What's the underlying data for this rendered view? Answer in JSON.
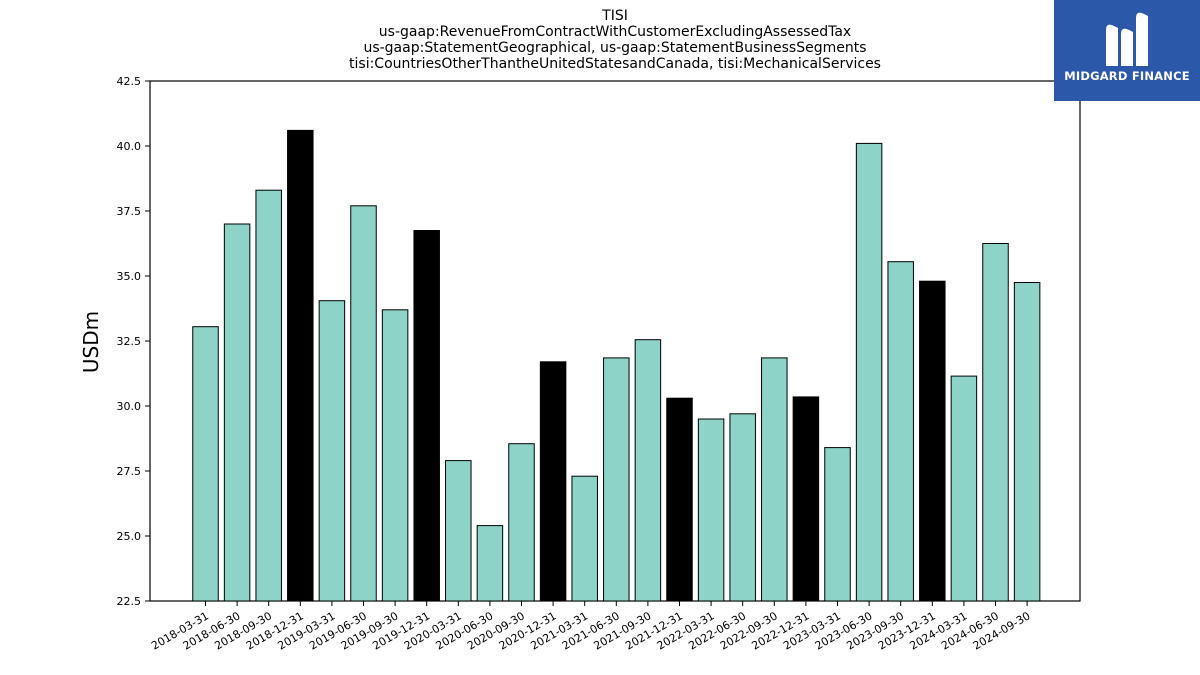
{
  "chart_data": {
    "type": "bar",
    "title_lines": [
      "TISI",
      "us-gaap:RevenueFromContractWithCustomerExcludingAssessedTax",
      "us-gaap:StatementGeographical, us-gaap:StatementBusinessSegments",
      "tisi:CountriesOtherThantheUnitedStatesandCanada, tisi:MechanicalServices"
    ],
    "ylabel": "USDm",
    "xlabel": "",
    "ylim": [
      22.5,
      42.5
    ],
    "yticks": [
      "22.5",
      "25.0",
      "27.5",
      "30.0",
      "32.5",
      "35.0",
      "37.5",
      "40.0",
      "42.5"
    ],
    "categories": [
      "2018-03-31",
      "2018-06-30",
      "2018-09-30",
      "2018-12-31",
      "2019-03-31",
      "2019-06-30",
      "2019-09-30",
      "2019-12-31",
      "2020-03-31",
      "2020-06-30",
      "2020-09-30",
      "2020-12-31",
      "2021-03-31",
      "2021-06-30",
      "2021-09-30",
      "2021-12-31",
      "2022-03-31",
      "2022-06-30",
      "2022-09-30",
      "2022-12-31",
      "2023-03-31",
      "2023-06-30",
      "2023-09-30",
      "2023-12-31",
      "2024-03-31",
      "2024-06-30",
      "2024-09-30"
    ],
    "values": [
      33.05,
      37.0,
      38.3,
      40.6,
      34.05,
      37.7,
      33.7,
      36.75,
      27.9,
      25.4,
      28.55,
      31.7,
      27.3,
      31.85,
      32.55,
      30.3,
      29.5,
      29.7,
      31.85,
      30.35,
      28.4,
      40.1,
      35.55,
      34.8,
      31.15,
      36.25,
      34.75
    ],
    "bar_colors": [
      "#8dd3c7",
      "#8dd3c7",
      "#8dd3c7",
      "#000000",
      "#8dd3c7",
      "#8dd3c7",
      "#8dd3c7",
      "#000000",
      "#8dd3c7",
      "#8dd3c7",
      "#8dd3c7",
      "#000000",
      "#8dd3c7",
      "#8dd3c7",
      "#8dd3c7",
      "#000000",
      "#8dd3c7",
      "#8dd3c7",
      "#8dd3c7",
      "#000000",
      "#8dd3c7",
      "#8dd3c7",
      "#8dd3c7",
      "#000000",
      "#8dd3c7",
      "#8dd3c7",
      "#8dd3c7"
    ],
    "grid": false,
    "legend": "none"
  },
  "logo": {
    "text": "MIDGARD FINANCE",
    "background": "#2b58a8"
  }
}
